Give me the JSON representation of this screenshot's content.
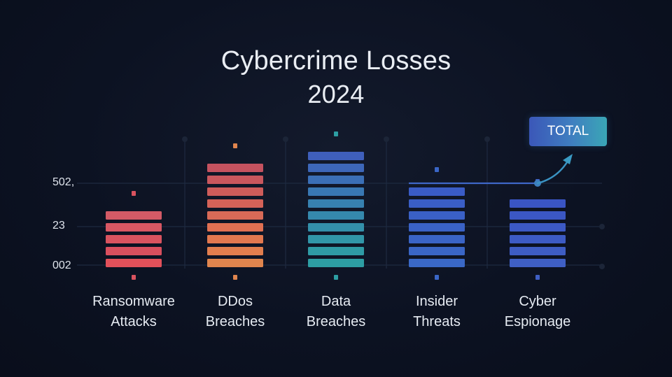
{
  "chart_data": {
    "type": "bar",
    "title": "Cybercrime Losses",
    "subtitle": "2024",
    "categories": [
      [
        "Ransomware",
        "Attacks"
      ],
      [
        "DDos",
        "Breaches"
      ],
      [
        "Data",
        "Breaches"
      ],
      [
        "Insider",
        "Threats"
      ],
      [
        "Cyber",
        "Espionage"
      ]
    ],
    "values": [
      5,
      9,
      10,
      7,
      6
    ],
    "ytick_labels": [
      "002",
      "23",
      "502,"
    ],
    "xlabel": "",
    "ylabel": "",
    "grid": true,
    "bar_colors": [
      [
        "#e2505a",
        "#d94f5e",
        "#d9535f",
        "#d85763",
        "#d35a66"
      ],
      [
        "#e0854e",
        "#e27e4e",
        "#e2784f",
        "#e07052",
        "#d86a57",
        "#d46258",
        "#ce5c5a",
        "#c9575d",
        "#c5525f"
      ],
      [
        "#2d9ea3",
        "#2f9ba5",
        "#3196a8",
        "#3390aa",
        "#3589ad",
        "#3781b0",
        "#3978b3",
        "#3b6fb6",
        "#3d67b9",
        "#3f5fbb"
      ],
      [
        "#3a68c6",
        "#3a66c6",
        "#3a64c6",
        "#3a62c6",
        "#3a60c6",
        "#3a5ec6",
        "#3a5cc6"
      ],
      [
        "#3f5fc4",
        "#3e5dc4",
        "#3d5bc4",
        "#3c59c4",
        "#3b57c4",
        "#3a55c4"
      ]
    ],
    "marker_colors": [
      "#d9535f",
      "#e0854e",
      "#2d9ea3",
      "#3a66c6",
      "#3f5fc4"
    ],
    "annotation": {
      "label": "TOTAL",
      "colors": [
        "#3b57b8",
        "#3aa6b6"
      ]
    }
  }
}
